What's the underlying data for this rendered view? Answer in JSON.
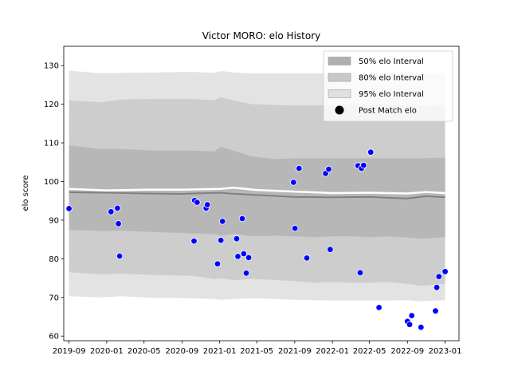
{
  "chart_data": {
    "type": "line",
    "title": "Victor MORO: elo History",
    "xlabel": "",
    "ylabel": "elo score",
    "ylim": [
      58.8,
      135
    ],
    "xlim": [
      "2019-08-15",
      "2023-02-15"
    ],
    "yticks": [
      60,
      70,
      80,
      90,
      100,
      110,
      120,
      130
    ],
    "xticks": [
      {
        "date": "2019-09-01",
        "label": "2019-09"
      },
      {
        "date": "2020-01-01",
        "label": "2020-01"
      },
      {
        "date": "2020-05-01",
        "label": "2020-05"
      },
      {
        "date": "2020-09-01",
        "label": "2020-09"
      },
      {
        "date": "2021-01-01",
        "label": "2021-01"
      },
      {
        "date": "2021-05-01",
        "label": "2021-05"
      },
      {
        "date": "2021-09-01",
        "label": "2021-09"
      },
      {
        "date": "2022-01-01",
        "label": "2022-01"
      },
      {
        "date": "2022-05-01",
        "label": "2022-05"
      },
      {
        "date": "2022-09-01",
        "label": "2022-09"
      },
      {
        "date": "2023-01-01",
        "label": "2023-01"
      }
    ],
    "legend": {
      "position": "top-right",
      "items": [
        {
          "label": "50% elo Interval",
          "color": "#b0b0b0",
          "kind": "patch"
        },
        {
          "label": "80% elo Interval",
          "color": "#c8c8c8",
          "kind": "patch"
        },
        {
          "label": "95% elo Interval",
          "color": "#e0e0e0",
          "kind": "patch"
        },
        {
          "label": "Post Match elo",
          "color": "#000000",
          "kind": "marker"
        }
      ]
    },
    "colors": {
      "band50": "#b7b7b7",
      "band80": "#cdcdcd",
      "band95": "#e3e3e3",
      "median": "#808080",
      "mean": "#ffffff",
      "points": "#0000ff",
      "point_edge": "#ffffff"
    },
    "bands": {
      "x": [
        "2019-09-01",
        "2019-12-15",
        "2020-02-15",
        "2020-06-01",
        "2020-10-01",
        "2020-12-15",
        "2021-01-05",
        "2021-02-15",
        "2021-04-15",
        "2021-07-01",
        "2021-09-01",
        "2021-11-01",
        "2022-01-01",
        "2022-03-01",
        "2022-05-01",
        "2022-07-01",
        "2022-09-01",
        "2022-10-15",
        "2023-01-01"
      ],
      "p95_upper": [
        128.7,
        128.0,
        128.1,
        128.2,
        128.4,
        128.1,
        128.6,
        128.2,
        128.0,
        128.0,
        128.0,
        128.0,
        128.0,
        128.0,
        128.0,
        128.0,
        128.0,
        128.0,
        128.0
      ],
      "p80_upper": [
        121.0,
        120.5,
        121.2,
        121.4,
        121.4,
        121.0,
        121.8,
        121.0,
        120.0,
        119.8,
        119.7,
        119.7,
        119.8,
        119.8,
        119.8,
        119.8,
        119.8,
        119.5,
        119.8
      ],
      "p50_upper": [
        109.4,
        108.4,
        108.4,
        108.0,
        108.0,
        107.8,
        109.0,
        108.0,
        106.5,
        105.8,
        106.0,
        106.0,
        106.0,
        106.0,
        106.0,
        106.0,
        106.0,
        106.0,
        106.2
      ],
      "p50_lower": [
        87.5,
        87.2,
        87.3,
        86.9,
        86.6,
        86.4,
        86.0,
        86.5,
        85.8,
        86.0,
        85.8,
        85.6,
        85.8,
        85.8,
        85.6,
        85.8,
        85.5,
        85.2,
        85.6
      ],
      "p80_lower": [
        76.5,
        76.0,
        76.2,
        75.8,
        75.6,
        74.8,
        75.0,
        74.5,
        74.8,
        74.5,
        74.2,
        73.8,
        74.0,
        73.8,
        73.8,
        74.0,
        73.5,
        73.0,
        73.5
      ],
      "p95_lower": [
        70.3,
        70.0,
        70.3,
        69.9,
        69.8,
        69.6,
        69.4,
        69.6,
        69.8,
        69.6,
        69.4,
        69.3,
        69.2,
        69.2,
        69.2,
        69.2,
        69.3,
        69.0,
        69.3
      ]
    },
    "series": [
      {
        "x": [
          "2019-09-01",
          "2020-01-01",
          "2020-05-01",
          "2020-09-01",
          "2021-01-01",
          "2021-02-01",
          "2021-05-01",
          "2021-09-01",
          "2022-01-01",
          "2022-05-01",
          "2022-09-01",
          "2022-11-01",
          "2023-01-01"
        ],
        "values": [
          97.2,
          97.1,
          96.9,
          96.8,
          97.1,
          96.9,
          96.5,
          96.0,
          95.9,
          96.0,
          95.6,
          96.2,
          95.9
        ]
      },
      {
        "x": [
          "2019-09-01",
          "2020-01-01",
          "2020-05-01",
          "2020-09-01",
          "2021-01-01",
          "2021-02-15",
          "2021-05-01",
          "2021-09-01",
          "2022-01-01",
          "2022-05-01",
          "2022-09-01",
          "2022-11-01",
          "2023-01-01"
        ],
        "values": [
          98.1,
          97.7,
          97.9,
          97.9,
          98.1,
          98.4,
          97.8,
          97.4,
          97.0,
          97.1,
          96.9,
          97.3,
          97.0
        ]
      }
    ],
    "points": [
      {
        "x": "2019-09-01",
        "y": 93.0
      },
      {
        "x": "2020-01-15",
        "y": 92.2
      },
      {
        "x": "2020-02-05",
        "y": 93.1
      },
      {
        "x": "2020-02-08",
        "y": 89.1
      },
      {
        "x": "2020-02-12",
        "y": 80.7
      },
      {
        "x": "2020-10-10",
        "y": 84.6
      },
      {
        "x": "2020-10-12",
        "y": 95.1
      },
      {
        "x": "2020-10-20",
        "y": 94.6
      },
      {
        "x": "2020-11-18",
        "y": 93.1
      },
      {
        "x": "2020-11-22",
        "y": 94.0
      },
      {
        "x": "2020-12-25",
        "y": 78.7
      },
      {
        "x": "2021-01-05",
        "y": 84.8
      },
      {
        "x": "2021-01-10",
        "y": 89.7
      },
      {
        "x": "2021-02-25",
        "y": 85.2
      },
      {
        "x": "2021-03-01",
        "y": 80.6
      },
      {
        "x": "2021-03-15",
        "y": 90.4
      },
      {
        "x": "2021-03-20",
        "y": 81.3
      },
      {
        "x": "2021-03-28",
        "y": 76.3
      },
      {
        "x": "2021-04-05",
        "y": 80.3
      },
      {
        "x": "2021-08-28",
        "y": 99.8
      },
      {
        "x": "2021-09-02",
        "y": 87.9
      },
      {
        "x": "2021-09-15",
        "y": 103.4
      },
      {
        "x": "2021-10-10",
        "y": 80.2
      },
      {
        "x": "2021-12-10",
        "y": 102.1
      },
      {
        "x": "2021-12-20",
        "y": 103.2
      },
      {
        "x": "2021-12-25",
        "y": 82.4
      },
      {
        "x": "2022-03-25",
        "y": 104.1
      },
      {
        "x": "2022-04-01",
        "y": 76.4
      },
      {
        "x": "2022-04-05",
        "y": 103.4
      },
      {
        "x": "2022-04-12",
        "y": 104.2
      },
      {
        "x": "2022-05-05",
        "y": 107.6
      },
      {
        "x": "2022-06-01",
        "y": 67.4
      },
      {
        "x": "2022-09-01",
        "y": 63.8
      },
      {
        "x": "2022-09-08",
        "y": 63.0
      },
      {
        "x": "2022-09-15",
        "y": 65.3
      },
      {
        "x": "2022-10-15",
        "y": 62.3
      },
      {
        "x": "2022-12-01",
        "y": 66.5
      },
      {
        "x": "2022-12-05",
        "y": 72.6
      },
      {
        "x": "2022-12-12",
        "y": 75.4
      },
      {
        "x": "2023-01-01",
        "y": 76.7
      }
    ]
  }
}
